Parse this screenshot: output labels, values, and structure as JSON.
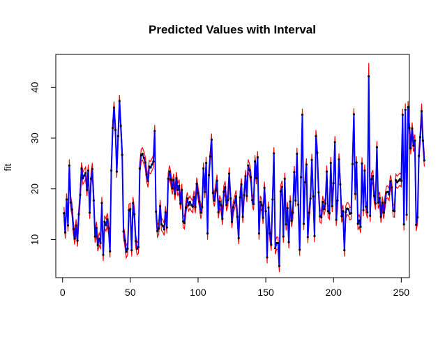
{
  "chart_data": {
    "type": "line",
    "title": "Predicted Values with Interval",
    "xlabel": "",
    "ylabel": "fit",
    "xlim": [
      -5,
      256
    ],
    "ylim": [
      2.5,
      46.5
    ],
    "x_ticks": [
      0,
      50,
      100,
      150,
      200,
      250
    ],
    "y_ticks": [
      10,
      20,
      30,
      40
    ],
    "grid": false,
    "legend": "none",
    "series": [
      {
        "color": "#0000ff",
        "marker": "point",
        "values": [
          15.2,
          11.4,
          17.9,
          12.8,
          24.6,
          17.3,
          15.9,
          12.1,
          10.2,
          12.8,
          9.8,
          15.0,
          18.8,
          24.0,
          22.1,
          22.6,
          23.1,
          19.8,
          23.6,
          15.3,
          22.0,
          23.9,
          17.7,
          10.6,
          12.3,
          8.9,
          10.1,
          9.3,
          17.2,
          7.0,
          13.5,
          12.9,
          14.0,
          12.2,
          7.7,
          23.6,
          32.0,
          36.0,
          31.6,
          23.4,
          30.4,
          37.3,
          32.4,
          26.7,
          11.6,
          9.8,
          7.6,
          8.2,
          15.8,
          16.0,
          7.9,
          17.2,
          15.0,
          9.7,
          8.2,
          8.5,
          24.0,
          26.6,
          26.9,
          26.1,
          25.2,
          22.8,
          21.5,
          24.4,
          24.2,
          24.8,
          25.4,
          31.4,
          15.5,
          11.7,
          12.2,
          16.6,
          13.0,
          12.7,
          12.0,
          15.4,
          12.4,
          22.0,
          23.4,
          21.8,
          20.1,
          21.8,
          19.0,
          22.1,
          19.8,
          20.6,
          17.1,
          19.8,
          13.6,
          13.3,
          16.3,
          18.1,
          16.8,
          17.4,
          16.8,
          16.5,
          18.4,
          16.4,
          21.0,
          19.2,
          17.5,
          15.3,
          16.4,
          24.0,
          19.4,
          25.1,
          11.2,
          22.7,
          26.4,
          29.7,
          19.2,
          17.7,
          19.7,
          21.6,
          15.4,
          17.5,
          16.7,
          14.1,
          19.4,
          20.3,
          16.8,
          17.8,
          23.0,
          18.1,
          13.5,
          16.4,
          17.3,
          18.5,
          14.5,
          10.3,
          18.3,
          20.9,
          14.5,
          18.8,
          22.5,
          18.6,
          24.6,
          23.7,
          22.3,
          17.8,
          17.0,
          25.4,
          22.1,
          26.2,
          11.2,
          17.4,
          16.8,
          14.3,
          20.2,
          15.6,
          6.5,
          16.3,
          11.2,
          9.0,
          17.9,
          27.0,
          8.3,
          9.3,
          9.3,
          4.8,
          19.5,
          20.4,
          10.6,
          22.0,
          13.0,
          16.2,
          9.5,
          17.5,
          13.7,
          15.3,
          23.3,
          17.7,
          26.9,
          16.9,
          8.0,
          22.3,
          34.6,
          13.1,
          21.3,
          24.8,
          10.5,
          15.3,
          18.1,
          25.7,
          18.5,
          10.7,
          30.4,
          27.1,
          19.3,
          14.6,
          14.4,
          17.4,
          16.0,
          17.1,
          23.4,
          15.6,
          15.2,
          25.1,
          16.6,
          21.1,
          29.2,
          13.9,
          17.7,
          25.8,
          20.9,
          14.6,
          15.6,
          7.9,
          15.4,
          16.1,
          16.0,
          15.1,
          15.2,
          24.9,
          34.7,
          19.0,
          25.2,
          13.1,
          13.7,
          12.5,
          25.0,
          15.8,
          23.6,
          16.5,
          15.4,
          42.2,
          14.7,
          21.9,
          22.5,
          18.6,
          17.1,
          28.2,
          17.3,
          18.2,
          14.5,
          17.3,
          15.3,
          17.3,
          19.3,
          19.4,
          18.9,
          21.5,
          20.3,
          15.7,
          15.6,
          21.7,
          21.3,
          21.6,
          21.9,
          21.6,
          34.6,
          13.0,
          35.6,
          14.9,
          36.1,
          32.0,
          28.0,
          31.9,
          28.5,
          29.5,
          12.9,
          14.4,
          26.5,
          30.2,
          35.3,
          29.5,
          25.6
        ]
      },
      {
        "color": "#ff0000",
        "band": "upper",
        "values": [
          16.4,
          12.6,
          19.1,
          14.0,
          25.8,
          18.5,
          17.1,
          13.3,
          11.4,
          14.0,
          11.0,
          16.2,
          20.0,
          25.2,
          23.3,
          23.8,
          24.3,
          21.0,
          24.8,
          16.5,
          23.2,
          25.1,
          18.9,
          11.8,
          13.5,
          10.1,
          11.3,
          10.5,
          18.4,
          8.2,
          14.7,
          14.1,
          15.2,
          13.4,
          8.9,
          24.8,
          33.2,
          37.2,
          32.8,
          24.6,
          31.6,
          38.5,
          33.6,
          27.9,
          12.8,
          11.0,
          8.8,
          9.4,
          17.0,
          17.2,
          9.1,
          18.4,
          16.2,
          10.9,
          9.4,
          9.7,
          25.2,
          27.8,
          28.1,
          27.3,
          26.4,
          24.0,
          22.7,
          25.6,
          25.4,
          26.0,
          26.6,
          32.6,
          16.7,
          12.9,
          13.4,
          17.8,
          14.2,
          13.9,
          13.2,
          16.6,
          13.6,
          23.2,
          24.6,
          23.0,
          21.3,
          23.0,
          20.2,
          23.3,
          21.0,
          21.8,
          18.3,
          21.0,
          14.8,
          14.5,
          17.5,
          19.3,
          18.0,
          18.6,
          18.0,
          17.7,
          19.6,
          17.6,
          22.2,
          20.4,
          18.7,
          16.5,
          17.6,
          25.2,
          20.6,
          26.3,
          12.4,
          23.9,
          27.6,
          30.9,
          20.4,
          18.9,
          20.9,
          22.8,
          16.6,
          18.7,
          17.9,
          15.3,
          20.6,
          21.5,
          18.0,
          19.0,
          24.2,
          19.3,
          14.7,
          17.6,
          18.5,
          19.7,
          15.7,
          11.5,
          19.5,
          22.1,
          15.7,
          20.0,
          23.7,
          19.8,
          25.8,
          24.9,
          23.5,
          19.0,
          18.2,
          26.6,
          23.3,
          27.4,
          12.4,
          18.6,
          18.0,
          15.5,
          21.4,
          16.8,
          7.7,
          17.5,
          12.4,
          10.2,
          19.1,
          28.2,
          9.5,
          10.5,
          10.5,
          6.0,
          20.7,
          21.6,
          11.8,
          23.2,
          14.2,
          17.4,
          10.7,
          18.7,
          14.9,
          16.5,
          24.5,
          18.9,
          28.1,
          18.1,
          9.2,
          23.5,
          35.8,
          14.3,
          22.5,
          26.0,
          11.7,
          16.5,
          19.3,
          26.9,
          19.7,
          11.9,
          31.6,
          28.3,
          20.5,
          15.8,
          15.6,
          18.6,
          17.2,
          18.3,
          24.6,
          16.8,
          16.4,
          26.3,
          17.8,
          22.3,
          30.4,
          15.1,
          18.9,
          27.0,
          22.1,
          15.8,
          16.8,
          9.1,
          16.6,
          17.3,
          17.2,
          16.3,
          16.4,
          26.1,
          35.9,
          20.2,
          26.4,
          14.3,
          14.9,
          13.7,
          26.2,
          17.0,
          24.8,
          17.7,
          16.6,
          44.8,
          15.9,
          23.1,
          23.7,
          19.8,
          18.3,
          29.4,
          18.5,
          19.4,
          15.7,
          18.5,
          16.5,
          18.5,
          20.5,
          20.6,
          20.1,
          22.7,
          21.5,
          16.9,
          16.8,
          22.9,
          22.5,
          22.8,
          23.1,
          22.8,
          35.8,
          14.2,
          36.8,
          16.1,
          37.3,
          33.2,
          29.2,
          33.1,
          29.7,
          30.7,
          14.1,
          15.6,
          27.7,
          31.4,
          36.8,
          30.7,
          26.8
        ]
      },
      {
        "color": "#ff0000",
        "band": "lower",
        "values": [
          14.0,
          10.2,
          16.7,
          11.6,
          23.4,
          16.1,
          14.7,
          10.9,
          9.0,
          11.6,
          8.6,
          13.8,
          17.6,
          22.8,
          20.9,
          21.4,
          21.9,
          18.6,
          22.4,
          14.1,
          20.8,
          22.7,
          16.5,
          9.4,
          11.1,
          7.7,
          8.9,
          8.1,
          16.0,
          5.8,
          12.3,
          11.7,
          12.8,
          11.0,
          6.5,
          22.4,
          30.8,
          34.8,
          30.4,
          22.2,
          29.2,
          36.1,
          31.2,
          25.5,
          10.4,
          8.6,
          6.4,
          7.0,
          14.6,
          14.8,
          6.7,
          16.0,
          13.8,
          8.5,
          7.0,
          7.3,
          22.8,
          25.4,
          25.7,
          24.9,
          24.0,
          21.6,
          20.3,
          23.2,
          23.0,
          23.6,
          24.2,
          30.2,
          14.3,
          10.5,
          11.0,
          15.4,
          11.8,
          11.5,
          10.8,
          14.2,
          11.2,
          20.8,
          22.2,
          20.6,
          18.9,
          20.6,
          17.8,
          20.9,
          18.6,
          19.4,
          15.9,
          18.6,
          12.4,
          12.1,
          15.1,
          16.9,
          15.6,
          16.2,
          15.6,
          15.3,
          17.2,
          15.2,
          19.8,
          18.0,
          16.3,
          14.1,
          15.2,
          22.8,
          18.2,
          23.9,
          10.0,
          21.5,
          25.2,
          28.5,
          18.0,
          16.5,
          18.5,
          20.4,
          14.2,
          16.3,
          15.5,
          12.9,
          18.2,
          19.1,
          15.6,
          16.6,
          21.8,
          16.9,
          12.3,
          15.2,
          16.1,
          17.3,
          13.3,
          9.1,
          17.1,
          19.7,
          13.3,
          17.6,
          21.3,
          17.4,
          23.4,
          22.5,
          21.1,
          16.6,
          15.8,
          24.2,
          20.9,
          25.0,
          10.0,
          16.2,
          15.6,
          13.1,
          19.0,
          14.4,
          5.3,
          15.1,
          10.0,
          7.8,
          16.7,
          25.8,
          7.1,
          8.1,
          8.1,
          3.6,
          18.3,
          19.2,
          9.4,
          20.8,
          11.8,
          15.0,
          8.3,
          16.3,
          12.5,
          14.1,
          22.1,
          16.5,
          25.7,
          15.7,
          6.8,
          21.1,
          33.4,
          11.9,
          20.1,
          23.6,
          9.3,
          14.1,
          16.9,
          24.5,
          17.3,
          9.5,
          29.2,
          25.9,
          18.1,
          13.4,
          13.2,
          16.2,
          14.8,
          15.9,
          22.2,
          14.4,
          14.0,
          23.9,
          15.4,
          19.9,
          28.0,
          12.7,
          16.5,
          24.6,
          19.7,
          13.4,
          14.4,
          6.7,
          14.2,
          14.9,
          14.8,
          13.9,
          14.0,
          23.7,
          33.5,
          17.8,
          24.0,
          11.9,
          12.5,
          11.3,
          23.8,
          14.6,
          22.4,
          15.3,
          14.2,
          41.0,
          13.5,
          20.7,
          21.3,
          17.4,
          15.9,
          27.0,
          16.1,
          17.0,
          13.3,
          16.1,
          14.1,
          16.1,
          18.1,
          18.2,
          17.7,
          20.3,
          19.1,
          14.5,
          14.4,
          20.5,
          20.1,
          20.4,
          20.7,
          20.4,
          33.4,
          11.8,
          34.4,
          13.7,
          34.9,
          30.8,
          26.8,
          30.7,
          27.3,
          28.3,
          11.7,
          13.2,
          25.3,
          29.0,
          34.1,
          28.3,
          24.4
        ]
      }
    ]
  }
}
